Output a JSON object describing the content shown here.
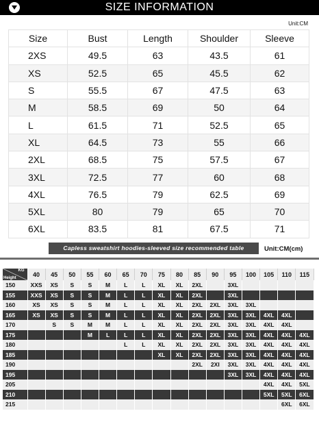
{
  "header": {
    "title": "SIZE INFORMATION",
    "icon": "chevron-down-circle-icon"
  },
  "unit_top": "Unit:CM",
  "size_table": {
    "columns": [
      "Size",
      "Bust",
      "Length",
      "Shoulder",
      "Sleeve"
    ],
    "rows": [
      [
        "2XS",
        "49.5",
        "63",
        "43.5",
        "61"
      ],
      [
        "XS",
        "52.5",
        "65",
        "45.5",
        "62"
      ],
      [
        "S",
        "55.5",
        "67",
        "47.5",
        "63"
      ],
      [
        "M",
        "58.5",
        "69",
        "50",
        "64"
      ],
      [
        "L",
        "61.5",
        "71",
        "52.5",
        "65"
      ],
      [
        "XL",
        "64.5",
        "73",
        "55",
        "66"
      ],
      [
        "2XL",
        "68.5",
        "75",
        "57.5",
        "67"
      ],
      [
        "3XL",
        "72.5",
        "77",
        "60",
        "68"
      ],
      [
        "4XL",
        "76.5",
        "79",
        "62.5",
        "69"
      ],
      [
        "5XL",
        "80",
        "79",
        "65",
        "70"
      ],
      [
        "6XL",
        "83.5",
        "81",
        "67.5",
        "71"
      ]
    ]
  },
  "recommend": {
    "banner": "Capless sweatshirt hoodies-sleeved size recommended table",
    "unit": "Unit:CM(cm)",
    "corner_kg": "KG",
    "corner_height": "Height",
    "weights": [
      "40",
      "45",
      "50",
      "55",
      "60",
      "65",
      "70",
      "75",
      "80",
      "85",
      "90",
      "95",
      "100",
      "105",
      "110",
      "115"
    ],
    "rows": [
      {
        "height": "150",
        "tone": "light",
        "cells": [
          "XXS",
          "XS",
          "S",
          "S",
          "M",
          "L",
          "L",
          "XL",
          "XL",
          "2XL",
          "",
          "3XL",
          "",
          "",
          "",
          ""
        ]
      },
      {
        "height": "155",
        "tone": "dark",
        "cells": [
          "XXS",
          "XS",
          "S",
          "S",
          "M",
          "L",
          "L",
          "XL",
          "XL",
          "2XL",
          "",
          "3XL",
          "",
          "",
          "",
          ""
        ]
      },
      {
        "height": "160",
        "tone": "light",
        "cells": [
          "XS",
          "XS",
          "S",
          "S",
          "M",
          "L",
          "L",
          "XL",
          "XL",
          "2XL",
          "2XL",
          "3XL",
          "3XL",
          "",
          "",
          ""
        ]
      },
      {
        "height": "165",
        "tone": "dark",
        "cells": [
          "XS",
          "XS",
          "S",
          "S",
          "M",
          "L",
          "L",
          "XL",
          "XL",
          "2XL",
          "2XL",
          "3XL",
          "3XL",
          "4XL",
          "4XL",
          ""
        ]
      },
      {
        "height": "170",
        "tone": "light",
        "cells": [
          "",
          "S",
          "S",
          "M",
          "M",
          "L",
          "L",
          "XL",
          "XL",
          "2XL",
          "2XL",
          "3XL",
          "3XL",
          "4XL",
          "4XL",
          ""
        ]
      },
      {
        "height": "175",
        "tone": "dark",
        "cells": [
          "",
          "",
          "",
          "M",
          "L",
          "L",
          "L",
          "XL",
          "XL",
          "2XL",
          "2XL",
          "3XL",
          "3XL",
          "4XL",
          "4XL",
          "4XL"
        ]
      },
      {
        "height": "180",
        "tone": "light",
        "cells": [
          "",
          "",
          "",
          "",
          "",
          "L",
          "L",
          "XL",
          "XL",
          "2XL",
          "2XL",
          "3XL",
          "3XL",
          "4XL",
          "4XL",
          "4XL"
        ]
      },
      {
        "height": "185",
        "tone": "dark",
        "cells": [
          "",
          "",
          "",
          "",
          "",
          "",
          "",
          "XL",
          "XL",
          "2XL",
          "2XL",
          "3XL",
          "3XL",
          "4XL",
          "4XL",
          "4XL"
        ]
      },
      {
        "height": "190",
        "tone": "light",
        "cells": [
          "",
          "",
          "",
          "",
          "",
          "",
          "",
          "",
          "",
          "2XL",
          "2XI",
          "3XL",
          "3XL",
          "4XL",
          "4XL",
          "4XL"
        ]
      },
      {
        "height": "195",
        "tone": "dark",
        "cells": [
          "",
          "",
          "",
          "",
          "",
          "",
          "",
          "",
          "",
          "",
          "",
          "3XL",
          "3XL",
          "4XL",
          "4XL",
          "4XL"
        ]
      },
      {
        "height": "205",
        "tone": "light",
        "cells": [
          "",
          "",
          "",
          "",
          "",
          "",
          "",
          "",
          "",
          "",
          "",
          "",
          "",
          "4XL",
          "4XL",
          "5XL"
        ]
      },
      {
        "height": "210",
        "tone": "dark",
        "cells": [
          "",
          "",
          "",
          "",
          "",
          "",
          "",
          "",
          "",
          "",
          "",
          "",
          "",
          "5XL",
          "5XL",
          "6XL"
        ]
      },
      {
        "height": "215",
        "tone": "light",
        "cells": [
          "",
          "",
          "",
          "",
          "",
          "",
          "",
          "",
          "",
          "",
          "",
          "",
          "",
          "",
          "6XL",
          "6XL"
        ]
      }
    ]
  }
}
